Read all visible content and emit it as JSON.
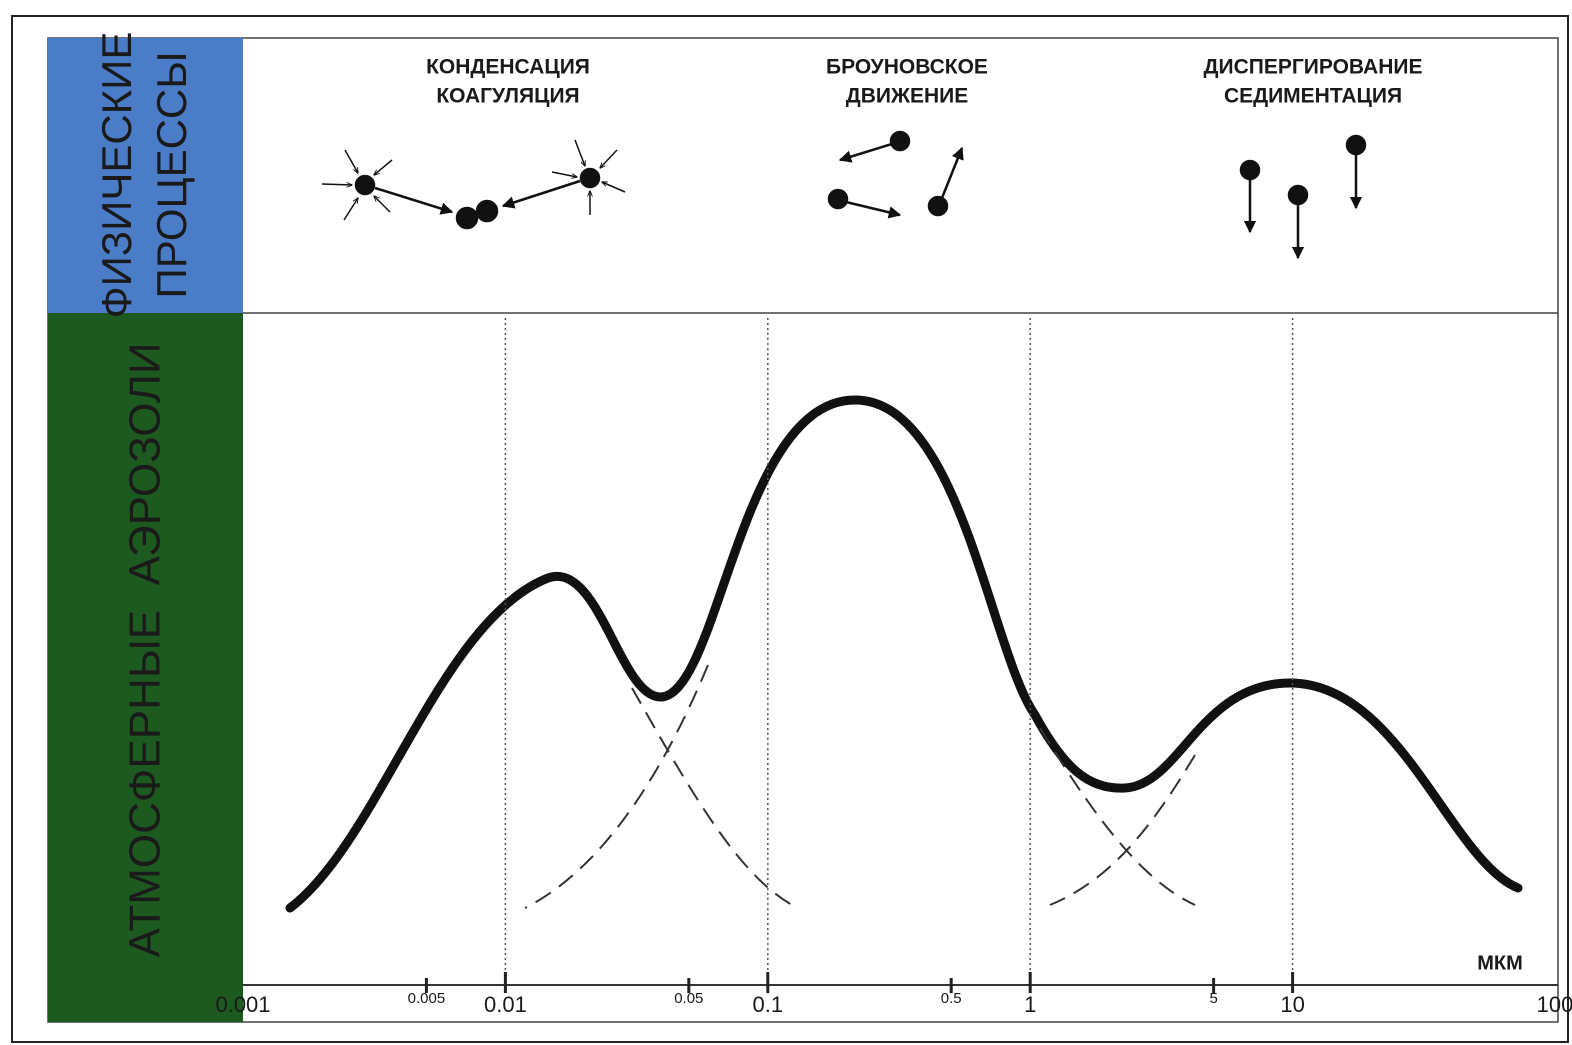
{
  "side_labels": {
    "processes": [
      "ФИЗИЧЕСКИЕ",
      "ПРОЦЕССЫ"
    ],
    "aerosols": "АТМОСФЕРНЫЕ  АЭРОЗОЛИ"
  },
  "processes": [
    {
      "lines": [
        "КОНДЕНСАЦИЯ",
        "КОАГУЛЯЦИЯ"
      ]
    },
    {
      "lines": [
        "БРОУНОВСКОЕ",
        "ДВИЖЕНИЕ"
      ]
    },
    {
      "lines": [
        "ДИСПЕРГИРОВАНИЕ",
        "СЕДИМЕНТАЦИЯ"
      ]
    }
  ],
  "chart_data": {
    "type": "line",
    "x_unit": "МКМ",
    "log_x": true,
    "xlim": [
      0.001,
      100
    ],
    "xticks": [
      0.001,
      0.005,
      0.01,
      0.05,
      0.1,
      0.5,
      1,
      5,
      10,
      100
    ],
    "grid": true
  }
}
